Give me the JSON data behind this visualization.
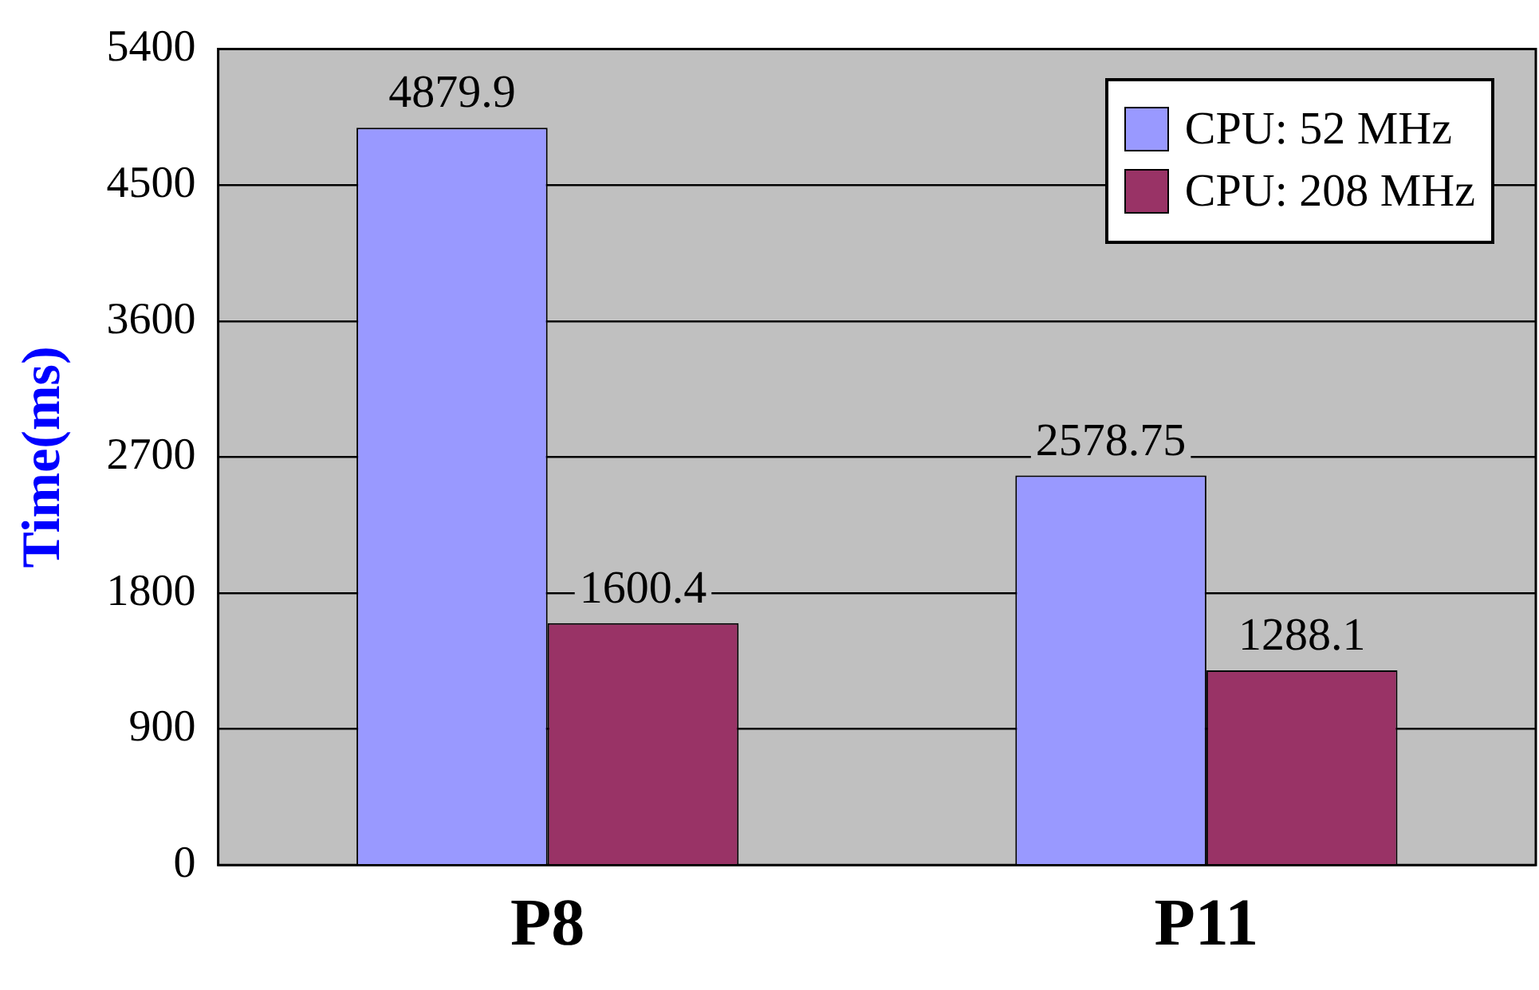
{
  "chart_data": {
    "type": "bar",
    "ylabel": "Time(ms)",
    "categories": [
      "P8",
      "P11"
    ],
    "series": [
      {
        "name": "CPU: 52 MHz",
        "color": "#9999ff",
        "values": [
          4879.9,
          2578.75
        ]
      },
      {
        "name": "CPU: 208 MHz",
        "color": "#993366",
        "values": [
          1600.4,
          1288.1
        ]
      }
    ],
    "ylim": [
      0,
      5400
    ],
    "yticks": [
      0,
      900,
      1800,
      2700,
      3600,
      4500,
      5400
    ],
    "grid": "y",
    "legend": "top right",
    "data_labels": true
  }
}
